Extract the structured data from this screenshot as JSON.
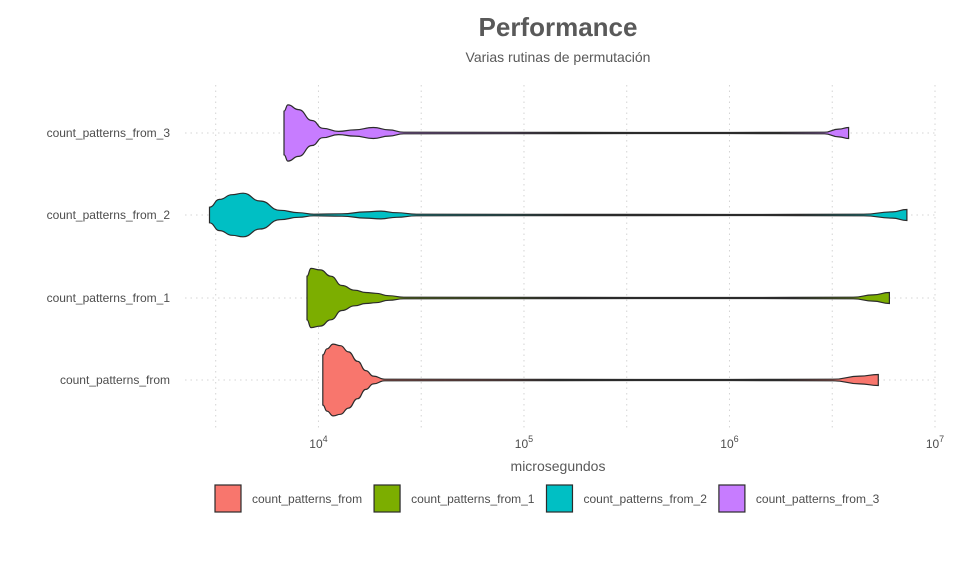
{
  "chart_data": {
    "type": "violin",
    "orientation": "horizontal",
    "title": "Performance",
    "subtitle": "Varias rutinas de permutación",
    "xlabel": "microsegundos",
    "ylabel": "",
    "x_scale": "log10",
    "xlim": [
      3000,
      10000000
    ],
    "x_ticks": [
      {
        "value": 10000,
        "base": "10",
        "exp": "4"
      },
      {
        "value": 100000,
        "base": "10",
        "exp": "5"
      },
      {
        "value": 1000000,
        "base": "10",
        "exp": "6"
      },
      {
        "value": 10000000,
        "base": "10",
        "exp": "7"
      }
    ],
    "grid": true,
    "legend_position": "bottom",
    "series": [
      {
        "name": "count_patterns_from",
        "color": "#F8766D",
        "min": 10500,
        "max": 5300000,
        "density": [
          [
            10500,
            32
          ],
          [
            11000,
            40
          ],
          [
            11800,
            46
          ],
          [
            12800,
            44
          ],
          [
            14000,
            36
          ],
          [
            15500,
            24
          ],
          [
            17000,
            12
          ],
          [
            18500,
            5
          ],
          [
            21000,
            1
          ],
          [
            1000000,
            0.6
          ],
          [
            3200000,
            1
          ],
          [
            4300000,
            5
          ],
          [
            5300000,
            7
          ]
        ]
      },
      {
        "name": "count_patterns_from_1",
        "color": "#7CAE00",
        "min": 8800,
        "max": 6000000,
        "density": [
          [
            8800,
            28
          ],
          [
            9200,
            38
          ],
          [
            10200,
            36
          ],
          [
            11500,
            28
          ],
          [
            13000,
            16
          ],
          [
            15000,
            10
          ],
          [
            17000,
            7
          ],
          [
            19000,
            6
          ],
          [
            22000,
            3
          ],
          [
            26000,
            1
          ],
          [
            1000000,
            0.6
          ],
          [
            4000000,
            1
          ],
          [
            5000000,
            4
          ],
          [
            6000000,
            7
          ]
        ]
      },
      {
        "name": "count_patterns_from_2",
        "color": "#00BFC4",
        "min": 2950,
        "max": 7300000,
        "density": [
          [
            2950,
            10
          ],
          [
            3300,
            20
          ],
          [
            3800,
            26
          ],
          [
            4300,
            28
          ],
          [
            5200,
            18
          ],
          [
            6500,
            6
          ],
          [
            8000,
            3
          ],
          [
            9500,
            1
          ],
          [
            13000,
            1.5
          ],
          [
            17000,
            4
          ],
          [
            20000,
            5
          ],
          [
            24000,
            3
          ],
          [
            30000,
            1
          ],
          [
            1000000,
            0.6
          ],
          [
            4500000,
            1
          ],
          [
            6200000,
            4
          ],
          [
            7300000,
            7
          ]
        ]
      },
      {
        "name": "count_patterns_from_3",
        "color": "#C77CFF",
        "min": 6800,
        "max": 3800000,
        "density": [
          [
            6800,
            28
          ],
          [
            7100,
            36
          ],
          [
            8000,
            30
          ],
          [
            9300,
            16
          ],
          [
            10500,
            6
          ],
          [
            12500,
            2
          ],
          [
            15000,
            4
          ],
          [
            18500,
            7
          ],
          [
            22000,
            4
          ],
          [
            26000,
            1
          ],
          [
            1000000,
            0.6
          ],
          [
            2900000,
            1
          ],
          [
            3400000,
            5
          ],
          [
            3800000,
            7
          ]
        ]
      }
    ]
  }
}
